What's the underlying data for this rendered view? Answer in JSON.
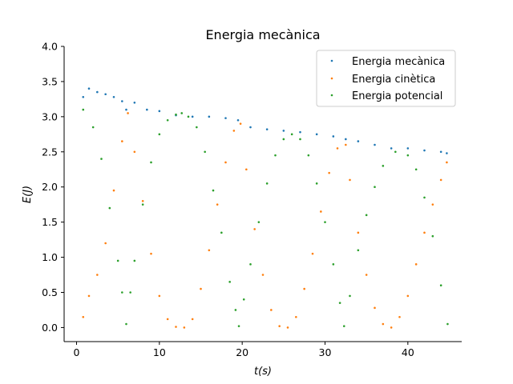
{
  "chart_data": {
    "type": "scatter",
    "title": "Energia mecànica",
    "xlabel": "t(s)",
    "ylabel": "E(J)",
    "xlim": [
      -1.5,
      46.5
    ],
    "ylim": [
      -0.2,
      4.0
    ],
    "xticks": [
      0,
      10,
      20,
      30,
      40
    ],
    "yticks": [
      0.0,
      0.5,
      1.0,
      1.5,
      2.0,
      2.5,
      3.0,
      3.5,
      4.0
    ],
    "xtick_labels": [
      "0",
      "10",
      "20",
      "30",
      "40"
    ],
    "ytick_labels": [
      "0.0",
      "0.5",
      "1.0",
      "1.5",
      "2.0",
      "2.5",
      "3.0",
      "3.5",
      "4.0"
    ],
    "grid": false,
    "legend_position": "upper-right",
    "series": [
      {
        "name": "Energia mecànica",
        "color": "#1f77b4",
        "x": [
          0.8,
          1.5,
          2.5,
          3.5,
          4.5,
          5.5,
          6.0,
          7.0,
          8.5,
          10.0,
          12.0,
          14.0,
          16.0,
          18.0,
          19.5,
          21.0,
          23.0,
          25.0,
          27.0,
          29.0,
          31.0,
          32.5,
          34.0,
          36.0,
          38.0,
          40.0,
          42.0,
          44.0,
          44.7
        ],
        "y": [
          3.28,
          3.4,
          3.35,
          3.32,
          3.28,
          3.22,
          3.1,
          3.2,
          3.1,
          3.08,
          3.02,
          3.0,
          3.0,
          2.98,
          2.95,
          2.85,
          2.82,
          2.8,
          2.78,
          2.75,
          2.72,
          2.68,
          2.65,
          2.6,
          2.55,
          2.55,
          2.52,
          2.5,
          2.48
        ]
      },
      {
        "name": "Energia cinètica",
        "color": "#ff7f0e",
        "x": [
          0.8,
          1.5,
          2.5,
          3.5,
          4.5,
          5.5,
          6.2,
          7.0,
          8.0,
          9.0,
          10.0,
          11.0,
          12.0,
          13.0,
          14.0,
          15.0,
          16.0,
          17.0,
          18.0,
          19.0,
          19.8,
          20.5,
          21.5,
          22.5,
          23.5,
          24.5,
          25.5,
          26.5,
          27.5,
          28.5,
          29.5,
          30.5,
          31.5,
          32.5,
          33.0,
          34.0,
          35.0,
          36.0,
          37.0,
          38.0,
          39.0,
          40.0,
          41.0,
          42.0,
          43.0,
          44.0,
          44.7
        ],
        "y": [
          0.15,
          0.45,
          0.75,
          1.2,
          1.95,
          2.65,
          3.05,
          2.5,
          1.8,
          1.05,
          0.45,
          0.12,
          0.01,
          0.0,
          0.12,
          0.55,
          1.1,
          1.75,
          2.35,
          2.8,
          2.9,
          2.25,
          1.4,
          0.75,
          0.25,
          0.02,
          0.0,
          0.15,
          0.55,
          1.05,
          1.65,
          2.2,
          2.55,
          2.6,
          2.1,
          1.35,
          0.75,
          0.28,
          0.05,
          0.0,
          0.15,
          0.45,
          0.9,
          1.35,
          1.75,
          2.1,
          2.35
        ]
      },
      {
        "name": "Energia potencial",
        "color": "#2ca02c",
        "x": [
          0.8,
          2.0,
          3.0,
          4.0,
          5.0,
          5.5,
          6.0,
          6.5,
          7.0,
          8.0,
          9.0,
          10.0,
          11.0,
          12.0,
          12.7,
          13.5,
          14.5,
          15.5,
          16.5,
          17.5,
          18.5,
          19.2,
          19.6,
          20.2,
          21.0,
          22.0,
          23.0,
          24.0,
          25.0,
          26.0,
          27.0,
          28.0,
          29.0,
          30.0,
          31.0,
          31.8,
          32.3,
          33.0,
          34.0,
          35.0,
          36.0,
          37.0,
          38.5,
          40.0,
          41.0,
          42.0,
          43.0,
          44.0,
          44.8
        ],
        "y": [
          3.1,
          2.85,
          2.4,
          1.7,
          0.95,
          0.5,
          0.05,
          0.5,
          0.95,
          1.75,
          2.35,
          2.75,
          2.95,
          3.03,
          3.05,
          3.0,
          2.85,
          2.5,
          1.95,
          1.35,
          0.65,
          0.25,
          0.02,
          0.4,
          0.9,
          1.5,
          2.05,
          2.45,
          2.68,
          2.75,
          2.68,
          2.45,
          2.05,
          1.5,
          0.9,
          0.35,
          0.02,
          0.45,
          1.1,
          1.6,
          2.0,
          2.3,
          2.5,
          2.45,
          2.25,
          1.85,
          1.3,
          0.6,
          0.05
        ]
      }
    ]
  }
}
